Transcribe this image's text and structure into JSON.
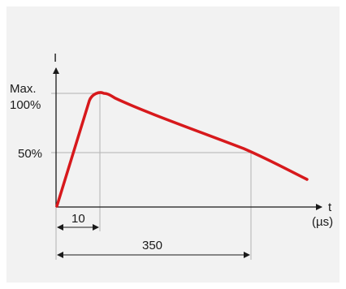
{
  "diagram": {
    "axis_y_label": "I",
    "axis_x_label": "t",
    "axis_x_unit": "(µs)",
    "y_labels": {
      "max": "Max.",
      "pct100": "100%",
      "pct50": "50%"
    },
    "rise_time_label": "10",
    "half_time_label": "350",
    "curve_color": "#d7191c",
    "guide_color": "#b3b3b3"
  }
}
